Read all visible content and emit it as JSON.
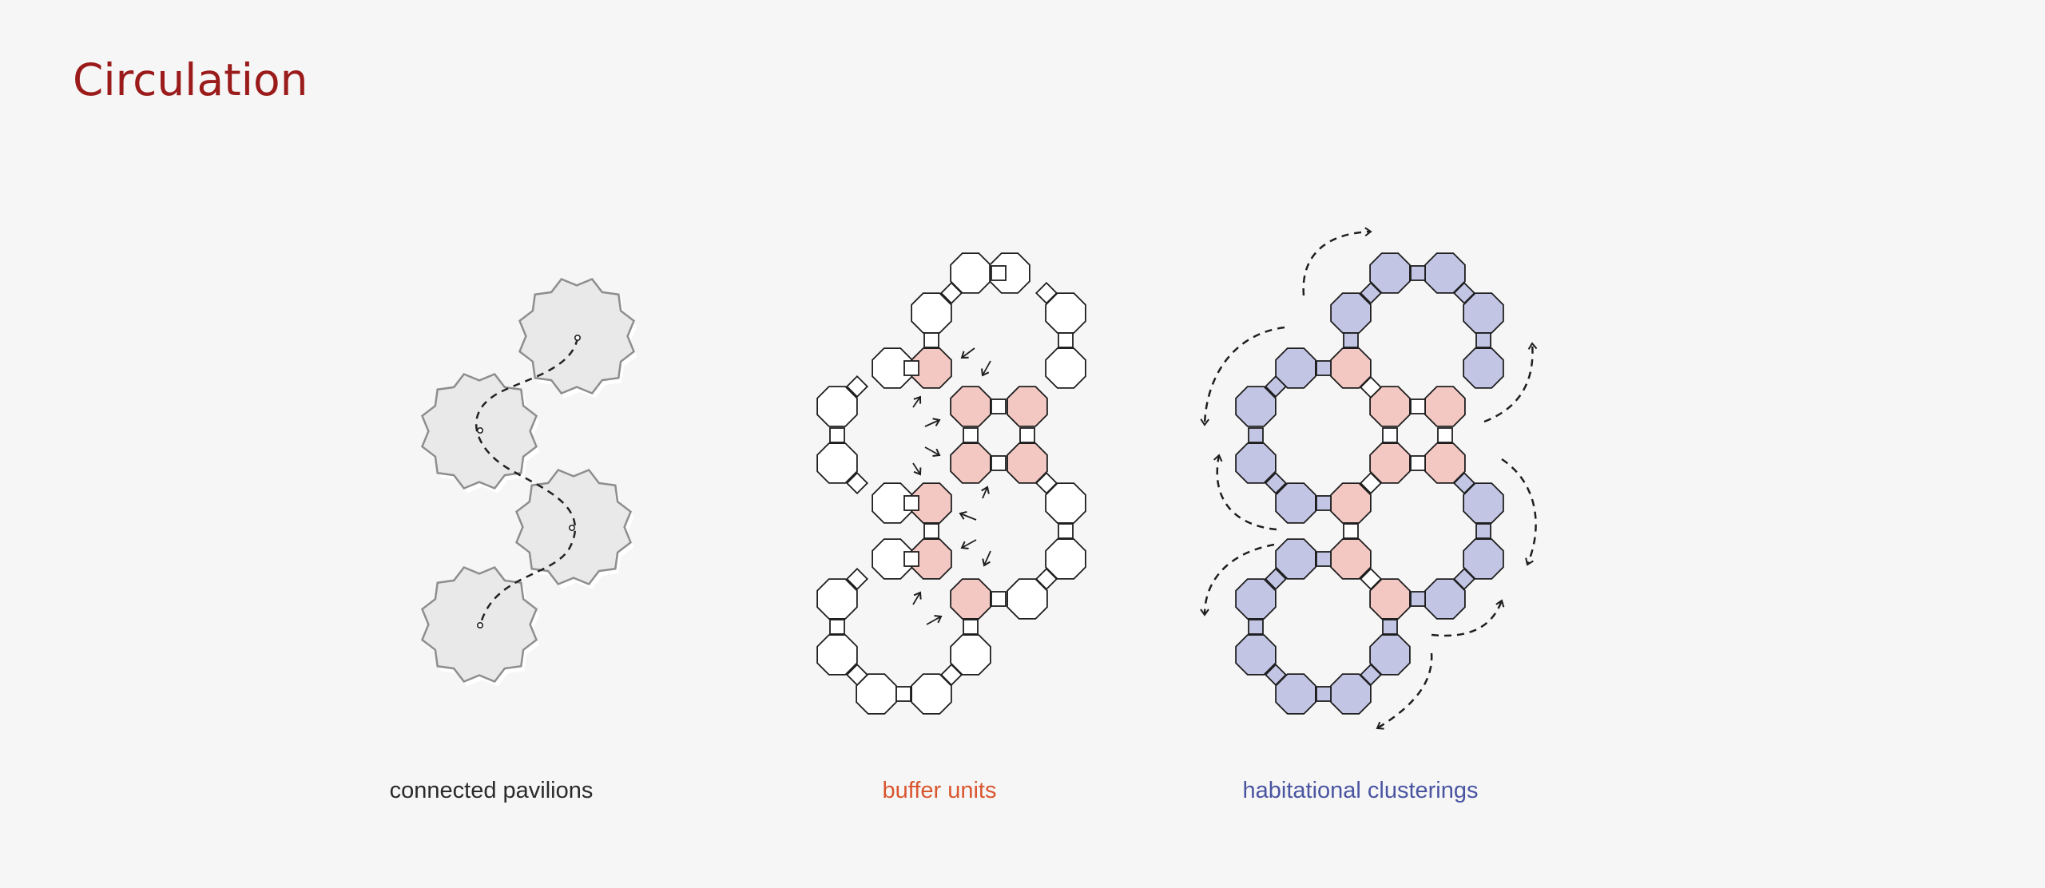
{
  "title": "Circulation",
  "colors": {
    "title": "#9b1b1b",
    "pavilion_fill": "#e9e9e9",
    "pavilion_stroke": "#8e8e8e",
    "outline": "#1e1e1e",
    "buffer_fill": "#f3c7c2",
    "cluster_fill": "#c2c5e4",
    "caption_pavilions": "#2a2a2a",
    "caption_buffer": "#d9572f",
    "caption_cluster": "#4a55a2"
  },
  "panels": [
    {
      "id": "pavilions",
      "caption": "connected pavilions"
    },
    {
      "id": "buffer",
      "caption": "buffer units"
    },
    {
      "id": "clusters",
      "caption": "habitational clusterings"
    }
  ]
}
